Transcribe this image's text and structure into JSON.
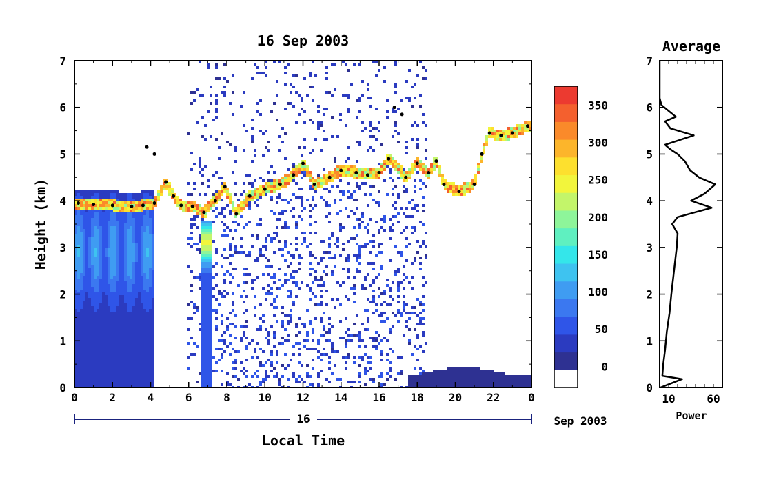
{
  "chart_data": [
    {
      "type": "heatmap",
      "title": "16 Sep 2003",
      "xlabel": "Local Time",
      "ylabel": "Height (km)",
      "x_ticks": [
        "0",
        "2",
        "4",
        "6",
        "8",
        "10",
        "12",
        "14",
        "16",
        "18",
        "20",
        "22",
        "0"
      ],
      "xlim": [
        0,
        24
      ],
      "y_ticks": [
        "0",
        "1",
        "2",
        "3",
        "4",
        "5",
        "6",
        "7"
      ],
      "ylim": [
        0,
        7
      ],
      "date_bar_label": "16",
      "date_suffix": "Sep 2003",
      "colorbar": {
        "ticks": [
          "0",
          "50",
          "100",
          "150",
          "200",
          "250",
          "300",
          "350"
        ],
        "range": [
          0,
          380
        ],
        "colors": [
          "#ffffff",
          "#2e3192",
          "#2b3bc0",
          "#2f55e8",
          "#3b78f0",
          "#3f9cf2",
          "#3ec3f0",
          "#34e6ea",
          "#5ff0c0",
          "#8ef59a",
          "#c3f56a",
          "#f2f53c",
          "#fde02e",
          "#fcb52b",
          "#fa8a2a",
          "#f4602e",
          "#ec3a30"
        ]
      },
      "layer_top_km": [
        {
          "x": 0.2,
          "y": 3.95
        },
        {
          "x": 1.0,
          "y": 3.92
        },
        {
          "x": 2.0,
          "y": 3.9
        },
        {
          "x": 3.0,
          "y": 3.88
        },
        {
          "x": 3.6,
          "y": 3.9
        },
        {
          "x": 4.2,
          "y": 3.95
        },
        {
          "x": 4.8,
          "y": 4.4
        },
        {
          "x": 5.2,
          "y": 4.1
        },
        {
          "x": 5.6,
          "y": 3.9
        },
        {
          "x": 6.2,
          "y": 3.88
        },
        {
          "x": 6.8,
          "y": 3.75
        },
        {
          "x": 7.4,
          "y": 4.0
        },
        {
          "x": 7.9,
          "y": 4.3
        },
        {
          "x": 8.5,
          "y": 3.72
        },
        {
          "x": 9.2,
          "y": 4.1
        },
        {
          "x": 10.0,
          "y": 4.25
        },
        {
          "x": 10.8,
          "y": 4.35
        },
        {
          "x": 11.5,
          "y": 4.55
        },
        {
          "x": 12.0,
          "y": 4.8
        },
        {
          "x": 12.6,
          "y": 4.35
        },
        {
          "x": 13.4,
          "y": 4.5
        },
        {
          "x": 14.0,
          "y": 4.65
        },
        {
          "x": 14.8,
          "y": 4.6
        },
        {
          "x": 15.4,
          "y": 4.55
        },
        {
          "x": 16.0,
          "y": 4.6
        },
        {
          "x": 16.5,
          "y": 4.9
        },
        {
          "x": 17.4,
          "y": 4.5
        },
        {
          "x": 18.0,
          "y": 4.8
        },
        {
          "x": 18.6,
          "y": 4.6
        },
        {
          "x": 19.0,
          "y": 4.85
        },
        {
          "x": 19.4,
          "y": 4.35
        },
        {
          "x": 20.2,
          "y": 4.2
        },
        {
          "x": 21.0,
          "y": 4.35
        },
        {
          "x": 21.4,
          "y": 5.0
        },
        {
          "x": 21.8,
          "y": 5.45
        },
        {
          "x": 22.4,
          "y": 5.4
        },
        {
          "x": 23.0,
          "y": 5.45
        },
        {
          "x": 23.8,
          "y": 5.6
        }
      ],
      "secondary_layer_km": [
        {
          "x": 16.8,
          "y": 6.0
        },
        {
          "x": 17.2,
          "y": 5.85
        },
        {
          "x": 3.8,
          "y": 5.15
        },
        {
          "x": 4.2,
          "y": 5.0
        }
      ]
    },
    {
      "type": "line",
      "title": "Average",
      "xlabel": "Power",
      "x_ticks": [
        "10",
        "60"
      ],
      "xlim": [
        0,
        70
      ],
      "y_ticks": [
        "0",
        "1",
        "2",
        "3",
        "4",
        "5",
        "6",
        "7"
      ],
      "ylim": [
        0,
        7
      ],
      "series": [
        {
          "points": [
            {
              "x": 1,
              "y": 0.0
            },
            {
              "x": 25,
              "y": 0.18
            },
            {
              "x": 3,
              "y": 0.25
            },
            {
              "x": 4,
              "y": 0.5
            },
            {
              "x": 6,
              "y": 0.8
            },
            {
              "x": 8,
              "y": 1.2
            },
            {
              "x": 11,
              "y": 1.6
            },
            {
              "x": 13,
              "y": 2.0
            },
            {
              "x": 16,
              "y": 2.5
            },
            {
              "x": 19,
              "y": 3.0
            },
            {
              "x": 20,
              "y": 3.3
            },
            {
              "x": 14,
              "y": 3.5
            },
            {
              "x": 20,
              "y": 3.65
            },
            {
              "x": 58,
              "y": 3.85
            },
            {
              "x": 35,
              "y": 4.0
            },
            {
              "x": 50,
              "y": 4.15
            },
            {
              "x": 62,
              "y": 4.35
            },
            {
              "x": 44,
              "y": 4.5
            },
            {
              "x": 34,
              "y": 4.65
            },
            {
              "x": 28,
              "y": 4.85
            },
            {
              "x": 20,
              "y": 5.0
            },
            {
              "x": 12,
              "y": 5.1
            },
            {
              "x": 6,
              "y": 5.2
            },
            {
              "x": 38,
              "y": 5.4
            },
            {
              "x": 12,
              "y": 5.55
            },
            {
              "x": 6,
              "y": 5.7
            },
            {
              "x": 18,
              "y": 5.8
            },
            {
              "x": 2,
              "y": 6.05
            },
            {
              "x": 0,
              "y": 6.2
            },
            {
              "x": 0,
              "y": 7.0
            }
          ]
        }
      ]
    }
  ]
}
